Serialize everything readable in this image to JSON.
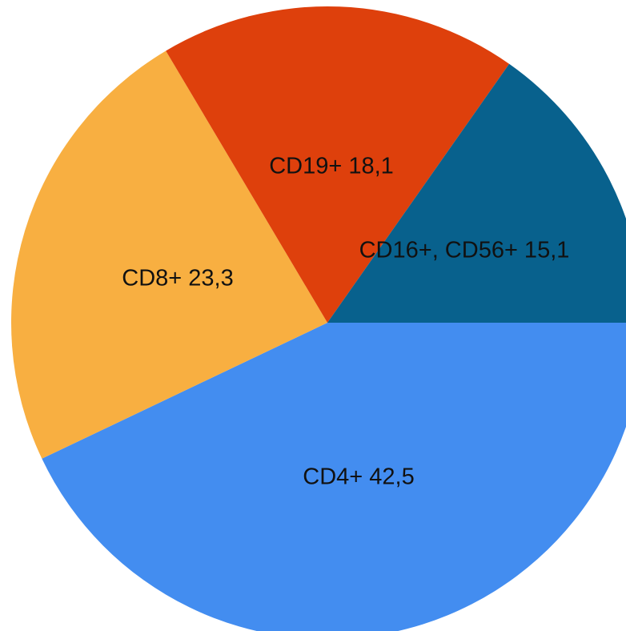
{
  "chart_data": {
    "type": "pie",
    "slices": [
      {
        "label": "CD4+ 42,5",
        "category": "CD4+",
        "value": 42.5,
        "color": "#438DF0"
      },
      {
        "label": "CD8+ 23,3",
        "category": "CD8+",
        "value": 23.3,
        "color": "#F8AF41"
      },
      {
        "label": "CD19+ 18,1",
        "category": "CD19+",
        "value": 18.1,
        "color": "#DE400C"
      },
      {
        "label": "CD16+, CD56+ 15,1",
        "category": "CD16+, CD56+",
        "value": 15.1,
        "color": "#08618D"
      }
    ],
    "start_angle_deg": 0,
    "direction": "clockwise",
    "legend": "none",
    "title": ""
  }
}
